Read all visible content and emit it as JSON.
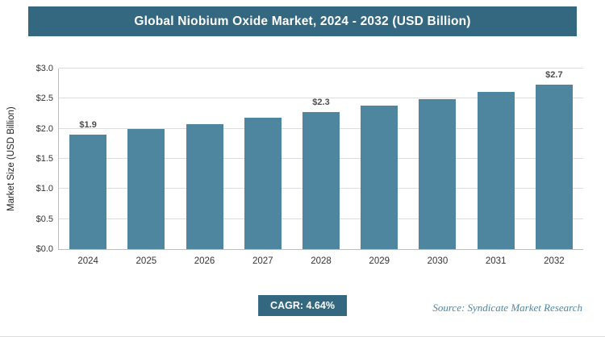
{
  "title": "Global Niobium Oxide Market, 2024 - 2032 (USD Billion)",
  "chart_data": {
    "type": "bar",
    "title": "Global Niobium Oxide Market, 2024 - 2032 (USD Billion)",
    "categories": [
      "2024",
      "2025",
      "2026",
      "2027",
      "2028",
      "2029",
      "2030",
      "2031",
      "2032"
    ],
    "values": [
      1.9,
      1.99,
      2.08,
      2.18,
      2.28,
      2.38,
      2.49,
      2.61,
      2.73
    ],
    "bar_labels": [
      "$1.9",
      "",
      "",
      "",
      "$2.3",
      "",
      "",
      "",
      "$2.7"
    ],
    "xlabel": "",
    "ylabel": "Market Size (USD Billion)",
    "ylim": [
      0,
      3.0
    ],
    "yticks": [
      "$0.0",
      "$0.5",
      "$1.0",
      "$1.5",
      "$2.0",
      "$2.5",
      "$3.0"
    ],
    "grid": true,
    "legend": false,
    "bar_color": "#4e86a0"
  },
  "footer": {
    "cagr_label": "CAGR: 4.64%",
    "source": "Source: Syndicate Market Research"
  },
  "colors": {
    "header_bg": "#346880",
    "bar": "#4e86a0",
    "cagr_bg": "#346880",
    "source_text": "#4e86a0"
  }
}
